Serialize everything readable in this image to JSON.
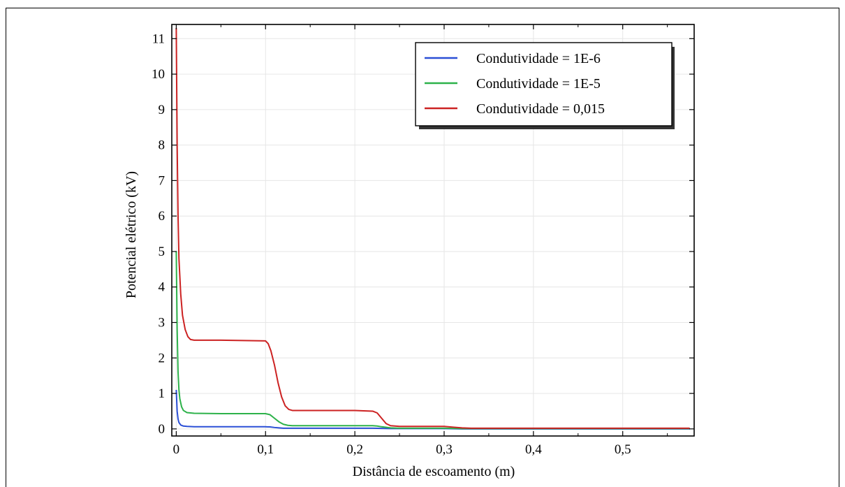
{
  "chart_data": {
    "type": "line",
    "xlabel": "Distância de escoamento (m)",
    "ylabel": "Potencial elétrico (kV)",
    "xlim": [
      -0.005,
      0.58
    ],
    "ylim": [
      -0.2,
      11.4
    ],
    "x_ticks": [
      0,
      0.1,
      0.2,
      0.3,
      0.4,
      0.5
    ],
    "x_tick_labels": [
      "0",
      "0,1",
      "0,2",
      "0,3",
      "0,4",
      "0,5"
    ],
    "y_ticks": [
      0,
      1,
      2,
      3,
      4,
      5,
      6,
      7,
      8,
      9,
      10,
      11
    ],
    "y_tick_labels": [
      "0",
      "1",
      "2",
      "3",
      "4",
      "5",
      "6",
      "7",
      "8",
      "9",
      "10",
      "11"
    ],
    "grid": true,
    "legend_position": "top-right",
    "series": [
      {
        "name": "Condutividade = 1E-6",
        "color": "#2a4fd6",
        "x": [
          0.0,
          0.001,
          0.002,
          0.003,
          0.005,
          0.008,
          0.012,
          0.02,
          0.05,
          0.1,
          0.105,
          0.11,
          0.115,
          0.12,
          0.13,
          0.2,
          0.22,
          0.23,
          0.24,
          0.3,
          0.32,
          0.4,
          0.5,
          0.575
        ],
        "y": [
          1.1,
          0.5,
          0.28,
          0.18,
          0.11,
          0.08,
          0.07,
          0.06,
          0.06,
          0.06,
          0.055,
          0.04,
          0.03,
          0.02,
          0.02,
          0.02,
          0.02,
          0.015,
          0.01,
          0.01,
          0.0,
          0.0,
          0.0,
          0.0
        ]
      },
      {
        "name": "Condutividade = 1E-5",
        "color": "#2db24a",
        "x": [
          0.0,
          0.001,
          0.002,
          0.003,
          0.004,
          0.006,
          0.008,
          0.012,
          0.02,
          0.05,
          0.1,
          0.105,
          0.11,
          0.115,
          0.12,
          0.125,
          0.13,
          0.2,
          0.22,
          0.225,
          0.23,
          0.24,
          0.25,
          0.3,
          0.32,
          0.4,
          0.5,
          0.575
        ],
        "y": [
          5.0,
          2.8,
          1.6,
          1.1,
          0.85,
          0.62,
          0.52,
          0.46,
          0.44,
          0.43,
          0.43,
          0.4,
          0.3,
          0.2,
          0.13,
          0.1,
          0.09,
          0.09,
          0.09,
          0.08,
          0.06,
          0.03,
          0.02,
          0.02,
          0.01,
          0.01,
          0.01,
          0.01
        ]
      },
      {
        "name": "Condutividade = 0,015",
        "color": "#cc2222",
        "x": [
          0.0,
          0.001,
          0.002,
          0.003,
          0.005,
          0.007,
          0.01,
          0.013,
          0.016,
          0.02,
          0.05,
          0.1,
          0.103,
          0.106,
          0.11,
          0.114,
          0.118,
          0.122,
          0.126,
          0.13,
          0.2,
          0.22,
          0.225,
          0.23,
          0.235,
          0.24,
          0.25,
          0.3,
          0.31,
          0.32,
          0.33,
          0.4,
          0.5,
          0.575
        ],
        "y": [
          11.3,
          8.0,
          6.0,
          4.8,
          3.8,
          3.2,
          2.8,
          2.6,
          2.52,
          2.5,
          2.5,
          2.48,
          2.4,
          2.2,
          1.8,
          1.3,
          0.9,
          0.65,
          0.55,
          0.52,
          0.52,
          0.5,
          0.45,
          0.3,
          0.15,
          0.09,
          0.07,
          0.07,
          0.05,
          0.03,
          0.02,
          0.02,
          0.02,
          0.02
        ]
      }
    ]
  }
}
